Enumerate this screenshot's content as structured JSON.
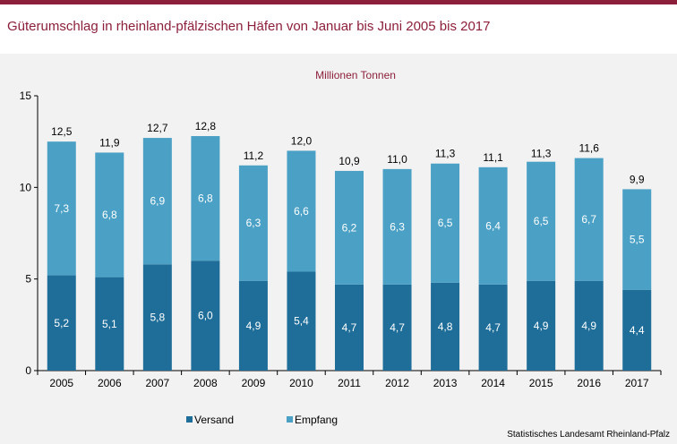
{
  "header": {
    "title": "Güterumschlag in rheinland-pfälzischen Häfen von Januar bis Juni 2005 bis 2017"
  },
  "chart_data": {
    "type": "bar",
    "stacked": true,
    "unit": "Millionen Tonnen",
    "categories": [
      "2005",
      "2006",
      "2007",
      "2008",
      "2009",
      "2010",
      "2011",
      "2012",
      "2013",
      "2014",
      "2015",
      "2016",
      "2017"
    ],
    "series": [
      {
        "name": "Versand",
        "color": "#1f6e99",
        "values": [
          5.2,
          5.1,
          5.8,
          6.0,
          4.9,
          5.4,
          4.7,
          4.7,
          4.8,
          4.7,
          4.9,
          4.9,
          4.4
        ],
        "labels": [
          "5,2",
          "5,1",
          "5,8",
          "6,0",
          "4,9",
          "5,4",
          "4,7",
          "4,7",
          "4,8",
          "4,7",
          "4,9",
          "4,9",
          "4,4"
        ]
      },
      {
        "name": "Empfang",
        "color": "#4ba0c5",
        "values": [
          7.3,
          6.8,
          6.9,
          6.8,
          6.3,
          6.6,
          6.2,
          6.3,
          6.5,
          6.4,
          6.5,
          6.7,
          5.5
        ],
        "labels": [
          "7,3",
          "6,8",
          "6,9",
          "6,8",
          "6,3",
          "6,6",
          "6,2",
          "6,3",
          "6,5",
          "6,4",
          "6,5",
          "6,7",
          "5,5"
        ]
      }
    ],
    "totals": {
      "values": [
        12.5,
        11.9,
        12.7,
        12.8,
        11.2,
        12.0,
        10.9,
        11.0,
        11.3,
        11.1,
        11.3,
        11.6,
        9.9
      ],
      "labels": [
        "12,5",
        "11,9",
        "12,7",
        "12,8",
        "11,2",
        "12,0",
        "10,9",
        "11,0",
        "11,3",
        "11,1",
        "11,3",
        "11,6",
        "9,9"
      ]
    },
    "ylim": [
      0,
      15
    ],
    "yticks": [
      0,
      5,
      10,
      15
    ],
    "ytick_labels": [
      "0",
      "5",
      "10",
      "15"
    ],
    "grid": false,
    "legend": "bottom"
  },
  "footer": {
    "source": "Statistisches Landesamt Rheinland-Pfalz"
  }
}
